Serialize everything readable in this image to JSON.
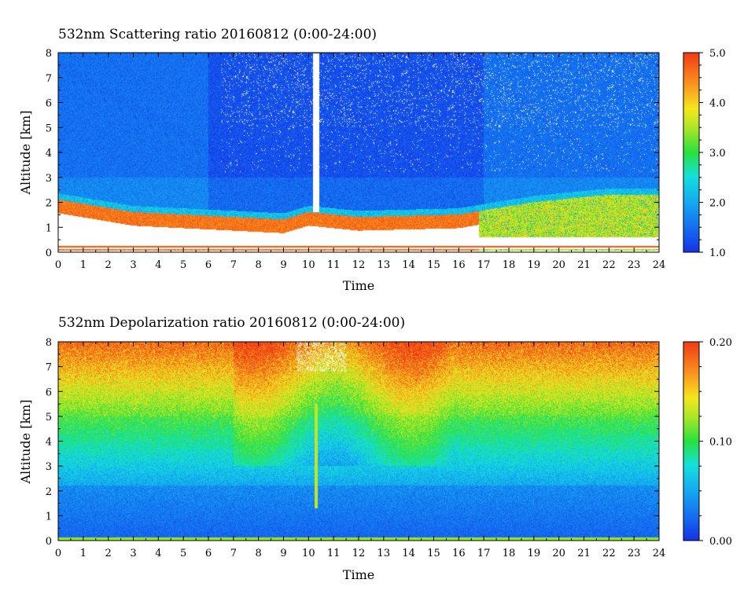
{
  "chart_data": [
    {
      "type": "heatmap",
      "title": "532nm Scattering ratio  20160812 (0:00-24:00)",
      "xlabel": "Time",
      "ylabel": "Altitude [km]",
      "xlim": [
        0,
        24
      ],
      "ylim": [
        0,
        8
      ],
      "x_ticks": [
        0,
        1,
        2,
        3,
        4,
        5,
        6,
        7,
        8,
        9,
        10,
        11,
        12,
        13,
        14,
        15,
        16,
        17,
        18,
        19,
        20,
        21,
        22,
        23,
        24
      ],
      "y_ticks": [
        0,
        1,
        2,
        3,
        4,
        5,
        6,
        7,
        8
      ],
      "colorbar": {
        "min": 1.0,
        "max": 5.0,
        "tick_values": [
          1.0,
          2.0,
          3.0,
          4.0,
          5.0
        ],
        "tick_labels": [
          "1.0",
          "2.0",
          "3.0",
          "4.0",
          "5.0"
        ],
        "colormap": "jet"
      },
      "features": {
        "background_value": 1.5,
        "boundary_layer_top_km": [
          [
            0,
            2.1
          ],
          [
            3,
            1.6
          ],
          [
            6,
            1.45
          ],
          [
            9,
            1.3
          ],
          [
            10,
            1.6
          ],
          [
            12,
            1.4
          ],
          [
            16,
            1.5
          ],
          [
            19,
            2.0
          ],
          [
            22,
            2.3
          ],
          [
            24,
            2.3
          ]
        ],
        "aerosol_layer_value": 4.6,
        "precipitation_column_time": 10.3
      }
    },
    {
      "type": "heatmap",
      "title": "532nm Depolarization ratio  20160812 (0:00-24:00)",
      "xlabel": "Time",
      "ylabel": "Altitude [km]",
      "xlim": [
        0,
        24
      ],
      "ylim": [
        0,
        8
      ],
      "x_ticks": [
        0,
        1,
        2,
        3,
        4,
        5,
        6,
        7,
        8,
        9,
        10,
        11,
        12,
        13,
        14,
        15,
        16,
        17,
        18,
        19,
        20,
        21,
        22,
        23,
        24
      ],
      "y_ticks": [
        0,
        1,
        2,
        3,
        4,
        5,
        6,
        7,
        8
      ],
      "colorbar": {
        "min": 0.0,
        "max": 0.2,
        "tick_values": [
          0.0,
          0.1,
          0.2
        ],
        "tick_labels": [
          "0.00",
          "0.10",
          "0.20"
        ],
        "colormap": "jet"
      },
      "features": {
        "low_altitude_value": 0.02,
        "mid_altitude_value": 0.05,
        "high_altitude_value": 0.18,
        "surface_layer_value": 0.12
      }
    }
  ]
}
